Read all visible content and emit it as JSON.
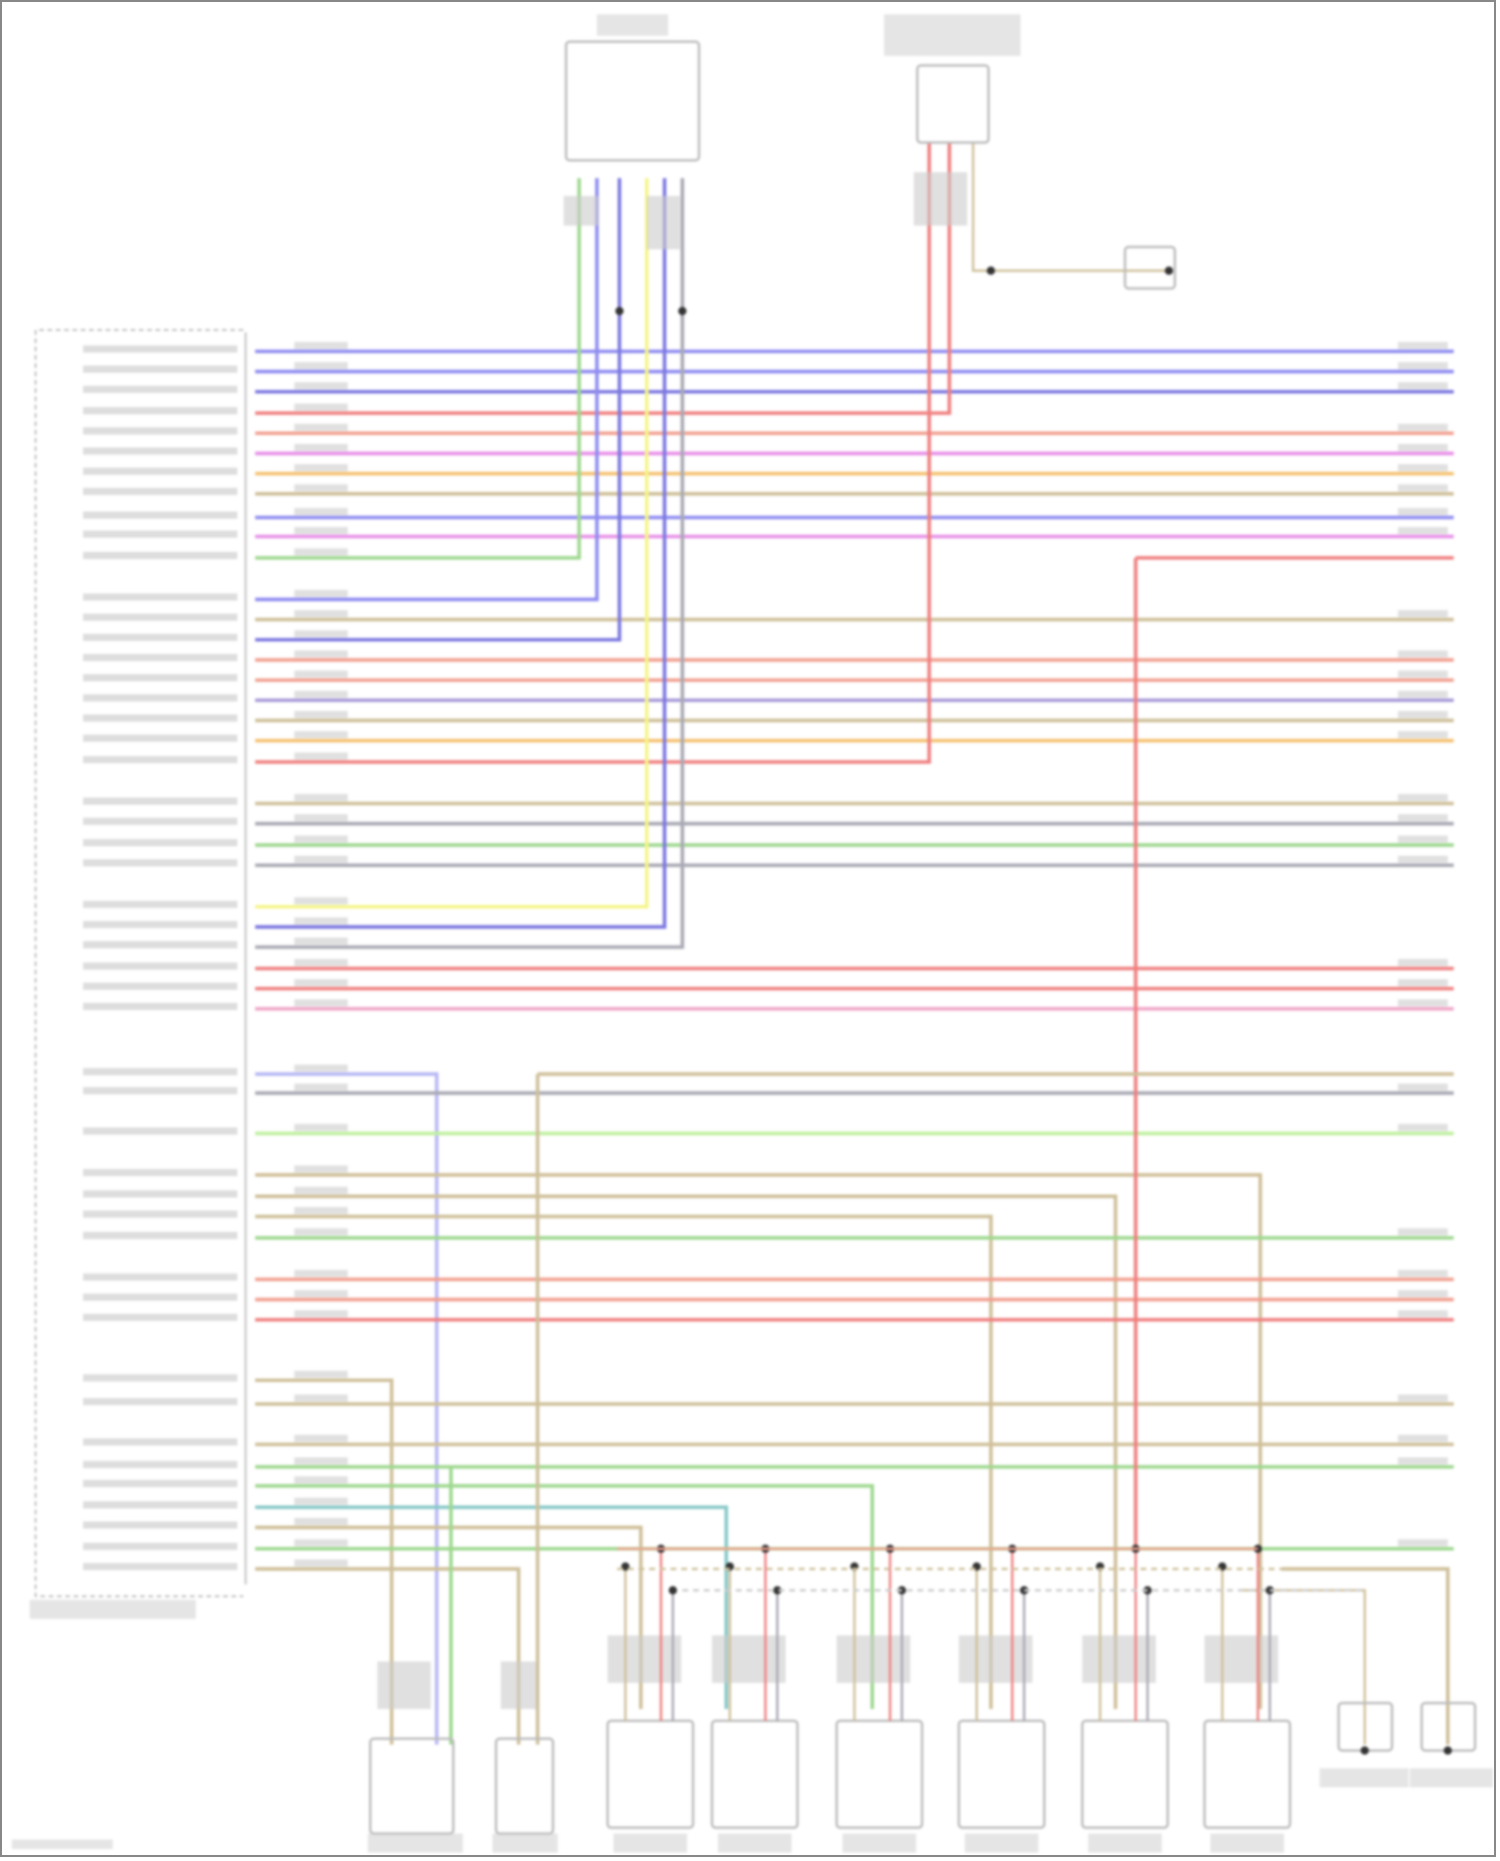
{
  "diagram": {
    "palette": {
      "blue": "#8f8cf0",
      "darkblue": "#7c78e0",
      "red": "#f08080",
      "salmon": "#f2a090",
      "magenta": "#e890e8",
      "orange": "#f5c070",
      "tan": "#cfc09a",
      "green": "#9ed88f",
      "lightgreen": "#bff0a0",
      "gray": "#a9a9b4",
      "yellow": "#f5f58a",
      "purple": "#a89ad8",
      "pink": "#f0a8c8",
      "teal": "#88c8c8",
      "lavender": "#b8b8f5",
      "frame": "#888888"
    },
    "labels": []
  }
}
